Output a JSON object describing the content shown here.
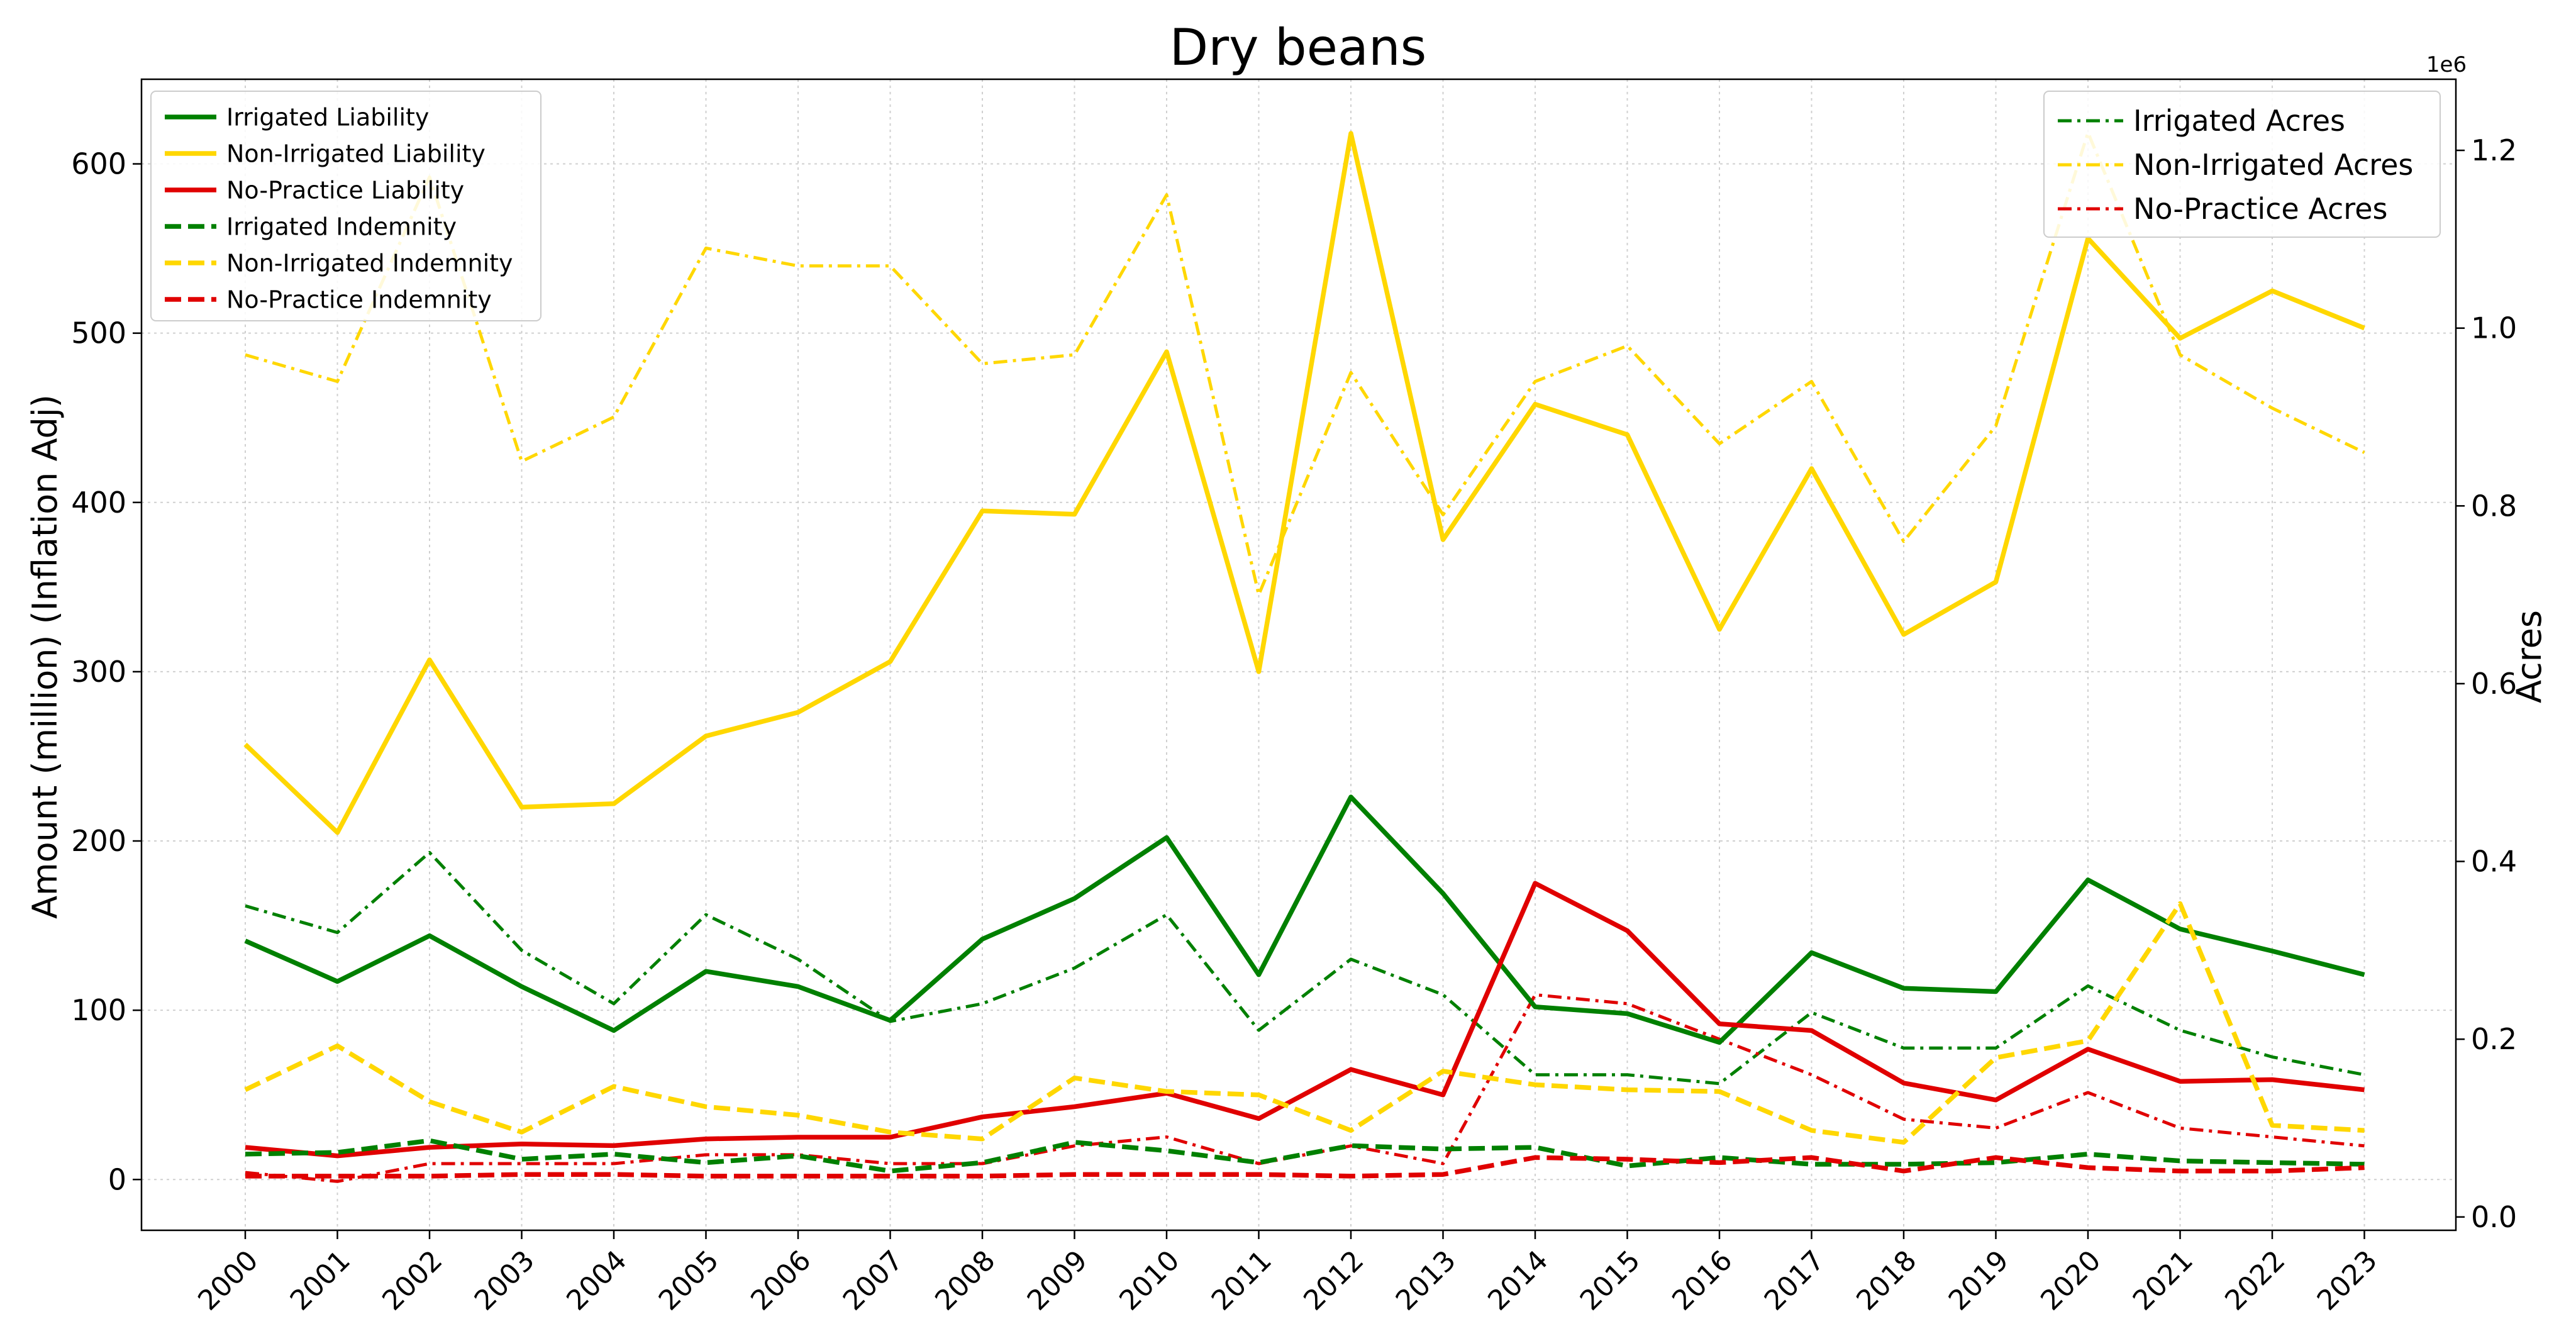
{
  "chart_data": {
    "type": "line",
    "title": "Dry beans",
    "xlabel": "",
    "ylabel": "Amount (million) (Inflation Adj)",
    "y2label": "Acres",
    "y2_offset_text": "1e6",
    "categories": [
      "2000",
      "2001",
      "2002",
      "2003",
      "2004",
      "2005",
      "2006",
      "2007",
      "2008",
      "2009",
      "2010",
      "2011",
      "2012",
      "2013",
      "2014",
      "2015",
      "2016",
      "2017",
      "2018",
      "2019",
      "2020",
      "2021",
      "2022",
      "2023"
    ],
    "ylim": [
      -30,
      650
    ],
    "y2lim": [
      -0.015,
      1.28
    ],
    "yticks": [
      0,
      100,
      200,
      300,
      400,
      500,
      600
    ],
    "y2ticks": [
      0.0,
      0.2,
      0.4,
      0.6,
      0.8,
      1.0,
      1.2
    ],
    "y2tick_labels": [
      "0.0",
      "0.2",
      "0.4",
      "0.6",
      "0.8",
      "1.0",
      "1.2"
    ],
    "grid": true,
    "legend_left_placement": "top-left",
    "legend_right_placement": "top-right",
    "colors": {
      "green": "#008000",
      "yellow": "#FFD700",
      "red": "#E00000"
    },
    "left_series": [
      {
        "name": "Irrigated Liability",
        "color": "#008000",
        "style": "solid",
        "values": [
          141,
          117,
          144,
          114,
          88,
          123,
          114,
          94,
          142,
          166,
          202,
          121,
          226,
          169,
          102,
          98,
          81,
          134,
          113,
          111,
          177,
          148,
          135,
          121
        ]
      },
      {
        "name": "Non-Irrigated Liability",
        "color": "#FFD700",
        "style": "solid",
        "values": [
          257,
          205,
          307,
          220,
          222,
          262,
          276,
          306,
          395,
          393,
          489,
          300,
          618,
          378,
          458,
          440,
          325,
          420,
          322,
          353,
          556,
          497,
          525,
          503
        ]
      },
      {
        "name": "No-Practice Liability",
        "color": "#E00000",
        "style": "solid",
        "values": [
          19,
          14,
          19,
          21,
          20,
          24,
          25,
          25,
          37,
          43,
          51,
          36,
          65,
          50,
          175,
          147,
          92,
          88,
          57,
          47,
          77,
          58,
          59,
          53
        ]
      },
      {
        "name": "Irrigated Indemnity",
        "color": "#008000",
        "style": "dashed",
        "values": [
          15,
          16,
          23,
          12,
          15,
          10,
          14,
          5,
          10,
          22,
          17,
          10,
          20,
          18,
          19,
          8,
          13,
          9,
          9,
          10,
          15,
          11,
          10,
          9
        ]
      },
      {
        "name": "Non-Irrigated Indemnity",
        "color": "#FFD700",
        "style": "dashed",
        "values": [
          53,
          79,
          46,
          28,
          55,
          43,
          38,
          28,
          24,
          60,
          52,
          50,
          29,
          64,
          56,
          53,
          52,
          29,
          22,
          72,
          82,
          163,
          32,
          29
        ]
      },
      {
        "name": "No-Practice Indemnity",
        "color": "#E00000",
        "style": "dashed",
        "values": [
          2,
          2,
          2,
          3,
          3,
          2,
          2,
          2,
          2,
          3,
          3,
          3,
          2,
          3,
          13,
          12,
          10,
          13,
          5,
          13,
          7,
          5,
          5,
          7
        ]
      }
    ],
    "right_series": [
      {
        "name": "Irrigated Acres",
        "color": "#008000",
        "style": "dashdot",
        "values": [
          0.35,
          0.32,
          0.41,
          0.3,
          0.24,
          0.34,
          0.29,
          0.22,
          0.24,
          0.28,
          0.34,
          0.21,
          0.29,
          0.25,
          0.16,
          0.16,
          0.15,
          0.23,
          0.19,
          0.19,
          0.26,
          0.21,
          0.18,
          0.16
        ]
      },
      {
        "name": "Non-Irrigated Acres",
        "color": "#FFD700",
        "style": "dashdot",
        "values": [
          0.97,
          0.94,
          1.17,
          0.85,
          0.9,
          1.09,
          1.07,
          1.07,
          0.96,
          0.97,
          1.15,
          0.7,
          0.95,
          0.79,
          0.94,
          0.98,
          0.87,
          0.94,
          0.76,
          0.89,
          1.22,
          0.97,
          0.91,
          0.86
        ]
      },
      {
        "name": "No-Practice Acres",
        "color": "#E00000",
        "style": "dashdot",
        "values": [
          0.05,
          0.04,
          0.06,
          0.06,
          0.06,
          0.07,
          0.07,
          0.06,
          0.06,
          0.08,
          0.09,
          0.06,
          0.08,
          0.06,
          0.25,
          0.24,
          0.2,
          0.16,
          0.11,
          0.1,
          0.14,
          0.1,
          0.09,
          0.08
        ]
      }
    ]
  }
}
